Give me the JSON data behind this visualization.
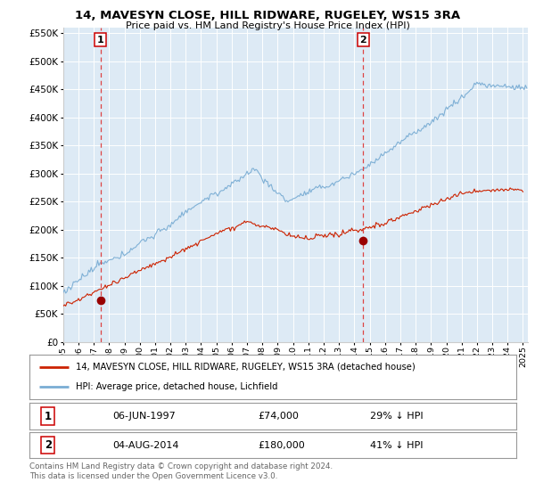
{
  "title": "14, MAVESYN CLOSE, HILL RIDWARE, RUGELEY, WS15 3RA",
  "subtitle": "Price paid vs. HM Land Registry's House Price Index (HPI)",
  "ylim": [
    0,
    560000
  ],
  "yticks": [
    0,
    50000,
    100000,
    150000,
    200000,
    250000,
    300000,
    350000,
    400000,
    450000,
    500000,
    550000
  ],
  "xlim_start": 1995.0,
  "xlim_end": 2025.3,
  "sale1_x": 1997.44,
  "sale1_y": 74000,
  "sale1_label": "1",
  "sale2_x": 2014.58,
  "sale2_y": 180000,
  "sale2_label": "2",
  "hpi_color": "#7aadd4",
  "price_color": "#cc2200",
  "sale_dot_color": "#990000",
  "dashed_line_color": "#dd4444",
  "plot_bg_color": "#ddeaf5",
  "grid_color": "#ffffff",
  "legend_entry1": "14, MAVESYN CLOSE, HILL RIDWARE, RUGELEY, WS15 3RA (detached house)",
  "legend_entry2": "HPI: Average price, detached house, Lichfield",
  "table_row1_num": "1",
  "table_row1_date": "06-JUN-1997",
  "table_row1_price": "£74,000",
  "table_row1_hpi": "29% ↓ HPI",
  "table_row2_num": "2",
  "table_row2_date": "04-AUG-2014",
  "table_row2_price": "£180,000",
  "table_row2_hpi": "41% ↓ HPI",
  "footer": "Contains HM Land Registry data © Crown copyright and database right 2024.\nThis data is licensed under the Open Government Licence v3.0."
}
